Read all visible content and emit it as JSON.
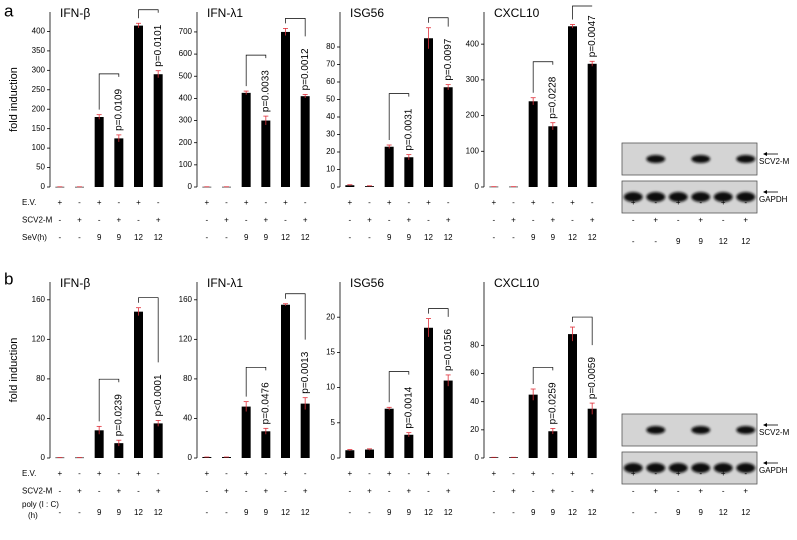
{
  "panels": [
    {
      "label": "a",
      "conditions": [
        {
          "label": "E.V.",
          "marks": [
            "+",
            "-",
            "+",
            "-",
            "+",
            "-"
          ]
        },
        {
          "label": "SCV2-M",
          "marks": [
            "-",
            "+",
            "-",
            "+",
            "-",
            "+"
          ]
        },
        {
          "label": "SeV(h)",
          "marks": [
            "-",
            "-",
            "9",
            "9",
            "12",
            "12"
          ]
        }
      ],
      "blot": {
        "labels": [
          "SCV2-M",
          "GAPDH"
        ]
      }
    },
    {
      "label": "b",
      "conditions": [
        {
          "label": "E.V.",
          "marks": [
            "+",
            "-",
            "+",
            "-",
            "+",
            "-"
          ]
        },
        {
          "label": "SCV2-M",
          "marks": [
            "-",
            "+",
            "-",
            "+",
            "-",
            "+"
          ]
        },
        {
          "label": [
            "poly (I : C)",
            "(h)"
          ],
          "marks": [
            "-",
            "-",
            "9",
            "9",
            "12",
            "12"
          ]
        }
      ],
      "blot": {
        "labels": [
          "SCV2-M",
          "GAPDH"
        ]
      }
    }
  ],
  "chart_data": [
    {
      "type": "bar",
      "title": "IFN-β",
      "ylabel": "fold induction",
      "categories": [
        null,
        null,
        null,
        null,
        null,
        null
      ],
      "values": [
        0.5,
        0.5,
        180,
        125,
        415,
        290
      ],
      "errors": [
        0,
        0,
        6,
        9,
        6,
        9
      ],
      "color": "#000000",
      "ylim": [
        0,
        450
      ],
      "yticks": [
        0,
        50,
        100,
        150,
        200,
        250,
        300,
        350,
        400
      ],
      "annotations": [
        "p=0.0109",
        "p=0.0101"
      ]
    },
    {
      "type": "bar",
      "title": "IFN-λ1",
      "categories": [
        null,
        null,
        null,
        null,
        null,
        null
      ],
      "values": [
        1,
        1,
        425,
        300,
        700,
        410
      ],
      "errors": [
        0,
        0,
        8,
        20,
        16,
        8
      ],
      "color": "#000000",
      "ylim": [
        0,
        790
      ],
      "yticks": [
        0,
        100,
        200,
        300,
        400,
        500,
        600,
        700
      ],
      "annotations": [
        "p=0.0033",
        "p=0.0012"
      ]
    },
    {
      "type": "bar",
      "title": "ISG56",
      "categories": [
        null,
        null,
        null,
        null,
        null,
        null
      ],
      "values": [
        1,
        0.5,
        23,
        17,
        85,
        57
      ],
      "errors": [
        0.3,
        0.2,
        1,
        1.5,
        6,
        1.5
      ],
      "color": "#000000",
      "ylim": [
        0,
        100
      ],
      "yticks": [
        0,
        10,
        20,
        30,
        40,
        50,
        60,
        70,
        80
      ],
      "annotations": [
        "p=0.0031",
        "p=0.0097"
      ]
    },
    {
      "type": "bar",
      "title": "CXCL10",
      "categories": [
        null,
        null,
        null,
        null,
        null,
        null
      ],
      "values": [
        1,
        1,
        240,
        170,
        450,
        345
      ],
      "errors": [
        0,
        0,
        10,
        10,
        5,
        7
      ],
      "color": "#000000",
      "ylim": [
        0,
        490
      ],
      "yticks": [
        0,
        100,
        200,
        300,
        400
      ],
      "annotations": [
        "p=0.0228",
        "p=0.0047"
      ]
    },
    {
      "type": "bar",
      "title": "IFN-β",
      "ylabel": "fold induction",
      "categories": [
        null,
        null,
        null,
        null,
        null,
        null
      ],
      "values": [
        0.5,
        0.5,
        28,
        15,
        148,
        35
      ],
      "errors": [
        0,
        0,
        4,
        3,
        4,
        3
      ],
      "color": "#000000",
      "ylim": [
        0,
        178
      ],
      "yticks": [
        0,
        40,
        80,
        120,
        160
      ],
      "annotations": [
        "p=0.0239",
        "p<0.0001"
      ]
    },
    {
      "type": "bar",
      "title": "IFN-λ1",
      "categories": [
        null,
        null,
        null,
        null,
        null,
        null
      ],
      "values": [
        1,
        1,
        52,
        27,
        155,
        55
      ],
      "errors": [
        0,
        0,
        5,
        3,
        1,
        6
      ],
      "color": "#000000",
      "ylim": [
        0,
        178
      ],
      "yticks": [
        0,
        40,
        80,
        120,
        160
      ],
      "annotations": [
        "p=0.0476",
        "p=0.0013"
      ]
    },
    {
      "type": "bar",
      "title": "ISG56",
      "categories": [
        null,
        null,
        null,
        null,
        null,
        null
      ],
      "values": [
        1.1,
        1.2,
        7,
        3.3,
        18.5,
        11
      ],
      "errors": [
        0.1,
        0.1,
        0.2,
        0.3,
        1.3,
        0.8
      ],
      "color": "#000000",
      "ylim": [
        0,
        25
      ],
      "yticks": [
        0,
        5,
        10,
        15,
        20
      ],
      "annotations": [
        "p=0.0014",
        "p=0.0156"
      ]
    },
    {
      "type": "bar",
      "title": "CXCL10",
      "categories": [
        null,
        null,
        null,
        null,
        null,
        null
      ],
      "values": [
        0.5,
        0.5,
        45,
        19,
        88,
        35
      ],
      "errors": [
        0,
        0,
        4,
        2,
        5,
        4
      ],
      "color": "#000000",
      "ylim": [
        0,
        125
      ],
      "yticks": [
        0,
        20,
        40,
        60,
        80
      ],
      "annotations": [
        "p=0.0259",
        "p=0.0059"
      ]
    }
  ]
}
